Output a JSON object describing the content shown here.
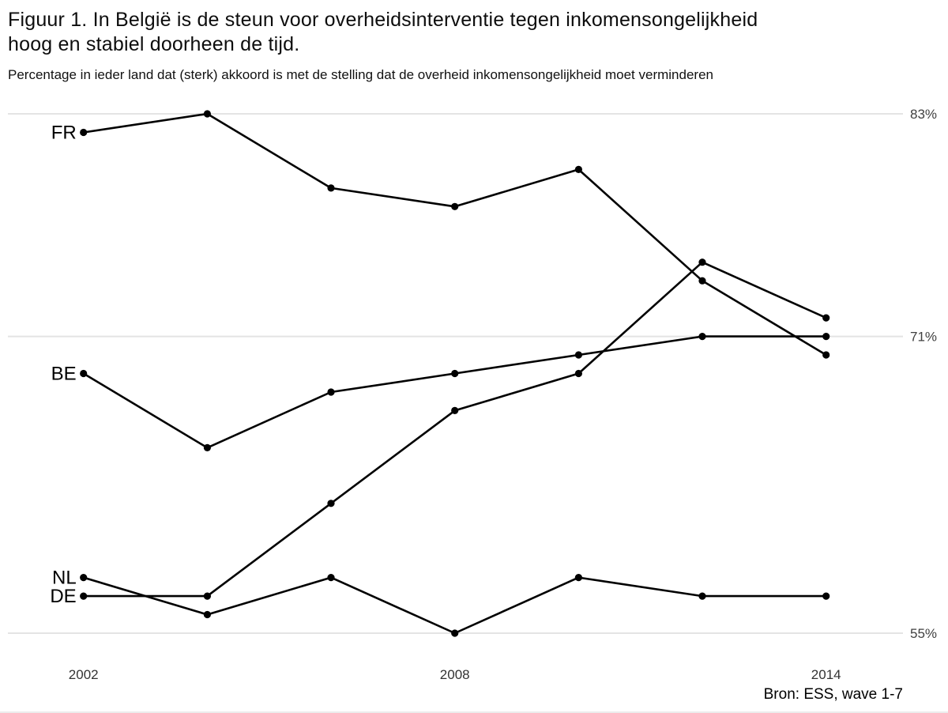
{
  "title": {
    "lines": [
      "Figuur 1. In België is de steun voor overheidsinterventie tegen inkomensongelijkheid",
      "hoog en stabiel doorheen de tijd."
    ]
  },
  "subtitle": "Percentage in ieder land dat (sterk) akkoord is met de stelling dat de overheid inkomensongelijkheid moet verminderen",
  "source_note": "Bron: ESS, wave 1-7",
  "chart_data": {
    "type": "line",
    "x": [
      2002,
      2004,
      2006,
      2008,
      2010,
      2012,
      2014
    ],
    "series": [
      {
        "name": "FR",
        "values": [
          82,
          83,
          79,
          78,
          80,
          74,
          70
        ]
      },
      {
        "name": "BE",
        "values": [
          69,
          65,
          68,
          69,
          70,
          71,
          71
        ]
      },
      {
        "name": "NL",
        "values": [
          58,
          56,
          58,
          55,
          58,
          57,
          57
        ]
      },
      {
        "name": "DE",
        "values": [
          57,
          57,
          62,
          67,
          69,
          75,
          72
        ]
      }
    ],
    "y_gridlines": [
      83,
      71,
      55
    ],
    "y_tick_labels": [
      "83%",
      "71%",
      "55%"
    ],
    "x_ticks_shown": [
      2002,
      2008,
      2014
    ],
    "x_tick_labels": [
      "2002",
      "2008",
      "2014"
    ],
    "ylim": [
      54,
      84
    ],
    "grid": "horizontal-only",
    "legend_position": "left-of-first-point",
    "line_color": "#000000",
    "point_color": "#000000",
    "grid_color": "#e4e4e4",
    "axis_label_color": "#404040",
    "tick_label_color": "#333333",
    "title_color": "#0d0d0d"
  }
}
